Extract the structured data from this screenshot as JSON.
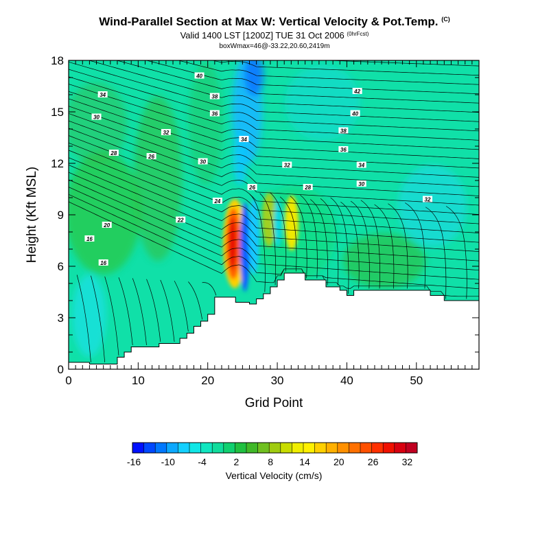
{
  "title": {
    "main": "Wind-Parallel Section at Max W: Vertical Velocity & Pot.Temp.",
    "main_mark": "(C)",
    "valid": "Valid 1400 LST [1200Z] TUE 31 Oct 2006",
    "valid_mark": "(0hrFcst)",
    "box": "boxWmax=46@-33.22,20.60,2419m"
  },
  "chart_data": {
    "type": "heatmap",
    "xlabel": "Grid Point",
    "ylabel": "Height (Kft MSL)",
    "xlim": [
      0,
      59
    ],
    "ylim": [
      0,
      18
    ],
    "x_ticks": [
      0,
      10,
      20,
      30,
      40,
      50
    ],
    "y_ticks": [
      0,
      3,
      6,
      9,
      12,
      15,
      18
    ],
    "colorbar": {
      "label": "Vertical Velocity (cm/s)",
      "tick_labels": [
        -16,
        -10,
        -4,
        2,
        8,
        14,
        20,
        26,
        32
      ],
      "levels": [
        -16,
        -14,
        -12,
        -10,
        -8,
        -6,
        -4,
        -2,
        0,
        2,
        4,
        6,
        8,
        10,
        12,
        14,
        16,
        18,
        20,
        22,
        24,
        26,
        28,
        30,
        32,
        34
      ],
      "colors": [
        "#0010ff",
        "#0048ff",
        "#0078ff",
        "#0ca8ff",
        "#14d0ff",
        "#10e6e6",
        "#10e6c0",
        "#10dc9c",
        "#10d070",
        "#20c040",
        "#40b828",
        "#70c020",
        "#a0cc10",
        "#c8dc00",
        "#f0ee00",
        "#fff000",
        "#ffd000",
        "#ffb000",
        "#ff9000",
        "#ff7000",
        "#ff5000",
        "#ff3000",
        "#f01000",
        "#d80010",
        "#c00020"
      ]
    },
    "terrain": [
      [
        0,
        0.4
      ],
      [
        3,
        0.4
      ],
      [
        3,
        0.3
      ],
      [
        7,
        0.3
      ],
      [
        7,
        0.7
      ],
      [
        8,
        0.7
      ],
      [
        8,
        1.0
      ],
      [
        9,
        1.0
      ],
      [
        9,
        1.3
      ],
      [
        13,
        1.3
      ],
      [
        13,
        1.5
      ],
      [
        16,
        1.5
      ],
      [
        16,
        1.8
      ],
      [
        17,
        1.8
      ],
      [
        17,
        2.1
      ],
      [
        18,
        2.1
      ],
      [
        18,
        2.5
      ],
      [
        19,
        2.5
      ],
      [
        19,
        2.8
      ],
      [
        20,
        2.8
      ],
      [
        20,
        3.2
      ],
      [
        21,
        3.2
      ],
      [
        21,
        4.2
      ],
      [
        24,
        4.2
      ],
      [
        24,
        3.9
      ],
      [
        26,
        3.9
      ],
      [
        26,
        3.8
      ],
      [
        27,
        3.8
      ],
      [
        27,
        4.1
      ],
      [
        28,
        4.1
      ],
      [
        28,
        4.4
      ],
      [
        29,
        4.4
      ],
      [
        29,
        4.8
      ],
      [
        30,
        4.8
      ],
      [
        30,
        5.2
      ],
      [
        31,
        5.2
      ],
      [
        31,
        5.6
      ],
      [
        34,
        5.6
      ],
      [
        34,
        5.2
      ],
      [
        37,
        5.2
      ],
      [
        37,
        4.8
      ],
      [
        39,
        4.8
      ],
      [
        39,
        4.6
      ],
      [
        40,
        4.6
      ],
      [
        40,
        4.3
      ],
      [
        41,
        4.3
      ],
      [
        41,
        4.6
      ],
      [
        52,
        4.6
      ],
      [
        52,
        4.3
      ],
      [
        54,
        4.3
      ],
      [
        54,
        4.0
      ],
      [
        59,
        4.0
      ]
    ],
    "theta_contour_labels": [
      {
        "value": 16,
        "x": 5.0,
        "y": 6.2
      },
      {
        "value": 16,
        "x": 3.0,
        "y": 7.6
      },
      {
        "value": 20,
        "x": 5.5,
        "y": 8.4
      },
      {
        "value": 22,
        "x": 16.1,
        "y": 8.7
      },
      {
        "value": 24,
        "x": 21.4,
        "y": 9.8
      },
      {
        "value": 26,
        "x": 26.4,
        "y": 10.6
      },
      {
        "value": 26,
        "x": 11.9,
        "y": 12.4
      },
      {
        "value": 28,
        "x": 6.5,
        "y": 12.6
      },
      {
        "value": 28,
        "x": 34.4,
        "y": 10.6
      },
      {
        "value": 30,
        "x": 19.3,
        "y": 12.1
      },
      {
        "value": 30,
        "x": 4.0,
        "y": 14.7
      },
      {
        "value": 30,
        "x": 42.1,
        "y": 10.8
      },
      {
        "value": 32,
        "x": 14.0,
        "y": 13.8
      },
      {
        "value": 32,
        "x": 31.4,
        "y": 11.9
      },
      {
        "value": 32,
        "x": 51.6,
        "y": 9.9
      },
      {
        "value": 34,
        "x": 4.9,
        "y": 16.0
      },
      {
        "value": 34,
        "x": 25.2,
        "y": 13.4
      },
      {
        "value": 34,
        "x": 42.1,
        "y": 11.9
      },
      {
        "value": 36,
        "x": 21.0,
        "y": 14.9
      },
      {
        "value": 36,
        "x": 39.5,
        "y": 12.8
      },
      {
        "value": 38,
        "x": 21.0,
        "y": 15.9
      },
      {
        "value": 38,
        "x": 39.5,
        "y": 13.9
      },
      {
        "value": 40,
        "x": 18.8,
        "y": 17.1
      },
      {
        "value": 40,
        "x": 41.2,
        "y": 14.9
      },
      {
        "value": 42,
        "x": 41.5,
        "y": 16.2
      }
    ]
  }
}
